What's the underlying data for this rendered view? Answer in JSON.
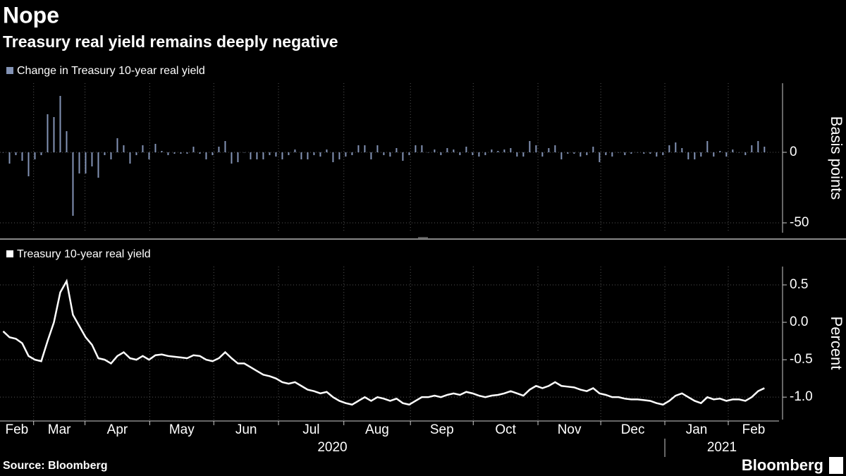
{
  "header": {
    "title": "Nope",
    "subtitle": "Treasury real yield remains deeply negative"
  },
  "chart_data": [
    {
      "type": "bar",
      "series": [
        {
          "name": "Change in Treasury 10-year real yield",
          "color": "#8393b5",
          "values": [
            0,
            -8,
            -2,
            -6,
            -17,
            -5,
            -2,
            27,
            25,
            40,
            15,
            -45,
            -15,
            -15,
            -10,
            -18,
            -2,
            -5,
            10,
            5,
            -8,
            -2,
            5,
            -5,
            6,
            1,
            -2,
            -1,
            -1,
            -1,
            4,
            -1,
            -5,
            -2,
            4,
            8,
            -8,
            -7,
            0,
            -5,
            -5,
            -5,
            -2,
            -3,
            -5,
            -2,
            2,
            -5,
            -5,
            -2,
            -3,
            2,
            -7,
            -5,
            -3,
            -2,
            5,
            5,
            -5,
            5,
            -2,
            -3,
            3,
            -6,
            -2,
            5,
            5,
            0,
            2,
            -2,
            3,
            2,
            -2,
            4,
            -2,
            -3,
            -2,
            2,
            1,
            2,
            3,
            -3,
            -3,
            8,
            5,
            -3,
            3,
            5,
            -5,
            -1,
            -1,
            -3,
            -2,
            4,
            -7,
            -2,
            -3,
            0,
            -2,
            -1,
            0,
            -1,
            -1,
            -3,
            -2,
            5,
            7,
            3,
            -5,
            -5,
            -3,
            8,
            -3,
            1,
            -3,
            2,
            0,
            -2,
            5,
            8,
            4
          ]
        }
      ],
      "xlim": [
        0,
        122.8
      ],
      "ylim": [
        -57,
        49
      ],
      "yticks": [
        0,
        -50
      ],
      "y_label": "Basis points",
      "grid": true
    },
    {
      "type": "line",
      "series": [
        {
          "name": "Treasury 10-year real yield",
          "color": "#ffffff",
          "values": [
            -0.12,
            -0.2,
            -0.22,
            -0.28,
            -0.45,
            -0.5,
            -0.52,
            -0.25,
            0.0,
            0.4,
            0.55,
            0.1,
            -0.05,
            -0.2,
            -0.3,
            -0.48,
            -0.5,
            -0.55,
            -0.45,
            -0.4,
            -0.48,
            -0.5,
            -0.45,
            -0.5,
            -0.44,
            -0.43,
            -0.45,
            -0.46,
            -0.47,
            -0.48,
            -0.44,
            -0.45,
            -0.5,
            -0.52,
            -0.48,
            -0.4,
            -0.48,
            -0.55,
            -0.55,
            -0.6,
            -0.65,
            -0.7,
            -0.72,
            -0.75,
            -0.8,
            -0.82,
            -0.8,
            -0.85,
            -0.9,
            -0.92,
            -0.95,
            -0.93,
            -1.0,
            -1.05,
            -1.08,
            -1.1,
            -1.05,
            -1.0,
            -1.05,
            -1.0,
            -1.02,
            -1.05,
            -1.02,
            -1.08,
            -1.1,
            -1.05,
            -1.0,
            -1.0,
            -0.98,
            -1.0,
            -0.97,
            -0.95,
            -0.97,
            -0.93,
            -0.95,
            -0.98,
            -1.0,
            -0.98,
            -0.97,
            -0.95,
            -0.92,
            -0.95,
            -0.98,
            -0.9,
            -0.85,
            -0.88,
            -0.85,
            -0.8,
            -0.85,
            -0.86,
            -0.87,
            -0.9,
            -0.92,
            -0.88,
            -0.95,
            -0.97,
            -1.0,
            -1.0,
            -1.02,
            -1.03,
            -1.03,
            -1.04,
            -1.05,
            -1.08,
            -1.1,
            -1.05,
            -0.98,
            -0.95,
            -1.0,
            -1.05,
            -1.08,
            -1.0,
            -1.03,
            -1.02,
            -1.05,
            -1.03,
            -1.03,
            -1.05,
            -1.0,
            -0.92,
            -0.88
          ]
        }
      ],
      "xlim": [
        0,
        122.8
      ],
      "ylim": [
        -1.3,
        0.745
      ],
      "yticks": [
        0.5,
        {
          "value": 0,
          "label": "0.0"
        },
        -0.5,
        {
          "value": -1,
          "label": "-1.0"
        }
      ],
      "xticks": [
        {
          "value": 0,
          "label": "Feb"
        },
        {
          "value": 5.3,
          "label": "Mar"
        },
        {
          "value": 13.4,
          "label": "Apr"
        },
        {
          "value": 23.6,
          "label": "May"
        },
        {
          "value": 33.7,
          "label": "Jun"
        },
        {
          "value": 43.9,
          "label": "Jul"
        },
        {
          "value": 54.2,
          "label": "Aug"
        },
        {
          "value": 64.7,
          "label": "Sep"
        },
        {
          "value": 74.6,
          "label": "Oct"
        },
        {
          "value": 84.8,
          "label": "Nov"
        },
        {
          "value": 94.7,
          "label": "Dec"
        },
        {
          "value": 104.8,
          "label": "Jan"
        },
        {
          "value": 114.8,
          "label": "Feb"
        }
      ],
      "years": [
        "2020",
        "2021"
      ],
      "y_label": "Percent",
      "grid": true
    }
  ],
  "footer": {
    "source": "Source: Bloomberg",
    "brand": "Bloomberg"
  }
}
